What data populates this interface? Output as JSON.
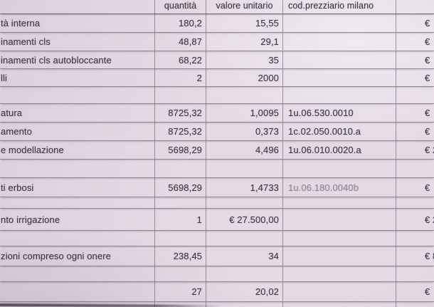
{
  "document": {
    "kind": "photographed spreadsheet printout",
    "language": "Italian"
  },
  "colors": {
    "paper": "#e4dae4",
    "ink": "#423c4a",
    "grid": "#564e5f",
    "faded_ink": "#998fa3"
  },
  "table": {
    "headers": {
      "label": "",
      "quantita": "quantità",
      "valore_unitario": "valore unitario",
      "cod_prezziario": "cod.prezziario milano",
      "importo": ""
    },
    "rows": [
      {
        "blank": false,
        "label": "tà interna",
        "quantita": "180,2",
        "valore": "15,55",
        "cod": "",
        "importo": "€",
        "faded": false
      },
      {
        "blank": false,
        "label": "inamenti cls",
        "quantita": "48,87",
        "valore": "29,1",
        "cod": "",
        "importo": "€",
        "faded": false
      },
      {
        "blank": false,
        "label": "inamenti cls autobloccante",
        "quantita": "68,22",
        "valore": "35",
        "cod": "",
        "importo": "€",
        "faded": false
      },
      {
        "blank": false,
        "label": "lli",
        "quantita": "2",
        "valore": "2000",
        "cod": "",
        "importo": "€",
        "faded": false
      },
      {
        "blank": true,
        "label": "",
        "quantita": "",
        "valore": "",
        "cod": "",
        "importo": "",
        "faded": false
      },
      {
        "blank": false,
        "label": "atura",
        "quantita": "8725,32",
        "valore": "1,0095",
        "cod": "1u.06.530.0010",
        "importo": "€",
        "faded": false
      },
      {
        "blank": false,
        "label": "amento",
        "quantita": "8725,32",
        "valore": "0,373",
        "cod": "1c.02.050.0010.a",
        "importo": "€",
        "faded": false
      },
      {
        "blank": false,
        "label": "e modellazione",
        "quantita": "5698,29",
        "valore": "4,496",
        "cod": "1u.06.010.0020.a",
        "importo": "€ 2",
        "faded": false
      },
      {
        "blank": true,
        "label": "",
        "quantita": "",
        "valore": "",
        "cod": "",
        "importo": "",
        "faded": false
      },
      {
        "blank": false,
        "label": "ti erbosi",
        "quantita": "5698,29",
        "valore": "1,4733",
        "cod": "1u.06.180.0040b",
        "importo": "€",
        "faded": true
      },
      {
        "blank": true,
        "label": "",
        "quantita": "",
        "valore": "",
        "cod": "",
        "importo": "",
        "faded": false
      },
      {
        "blank": false,
        "label": "nto irrigazione",
        "quantita": "1",
        "valore": "€ 27.500,00",
        "cod": "",
        "importo": "€ 2",
        "faded": false
      },
      {
        "blank": true,
        "label": "",
        "quantita": "",
        "valore": "",
        "cod": "",
        "importo": "",
        "faded": false
      },
      {
        "blank": false,
        "label": "zioni compreso ogni onere",
        "quantita": "238,45",
        "valore": "34",
        "cod": "",
        "importo": "€ 8",
        "faded": false
      },
      {
        "blank": true,
        "label": "",
        "quantita": "",
        "valore": "",
        "cod": "",
        "importo": "",
        "faded": false
      },
      {
        "blank": false,
        "label": "",
        "quantita": "27",
        "valore": "20,02",
        "cod": "",
        "importo": "€",
        "faded": false
      },
      {
        "blank": true,
        "label": "",
        "quantita": "",
        "valore": "",
        "cod": "",
        "importo": "",
        "faded": false
      }
    ]
  }
}
